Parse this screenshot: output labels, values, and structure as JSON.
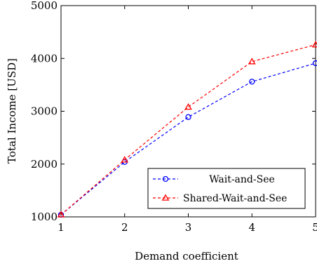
{
  "chart_data": {
    "type": "line",
    "title": "",
    "xlabel": "Demand coefficient",
    "ylabel": "Total Income [USD]",
    "x": [
      1,
      2,
      3,
      4,
      5
    ],
    "xlim": [
      1,
      5
    ],
    "ylim": [
      1000,
      5000
    ],
    "xticks": [
      "1",
      "2",
      "3",
      "4",
      "5"
    ],
    "yticks": [
      "1000",
      "2000",
      "3000",
      "4000",
      "5000"
    ],
    "grid": false,
    "legend_position": "bottom-right",
    "series": [
      {
        "name": "Wait-and-See",
        "values": [
          1040,
          2040,
          2890,
          3560,
          3910
        ],
        "color": "#0000ff",
        "marker": "circle",
        "line_style": "dashed"
      },
      {
        "name": "Shared-Wait-and-See",
        "values": [
          1040,
          2080,
          3080,
          3940,
          4260
        ],
        "color": "#ff0000",
        "marker": "triangle",
        "line_style": "dashed"
      }
    ]
  }
}
